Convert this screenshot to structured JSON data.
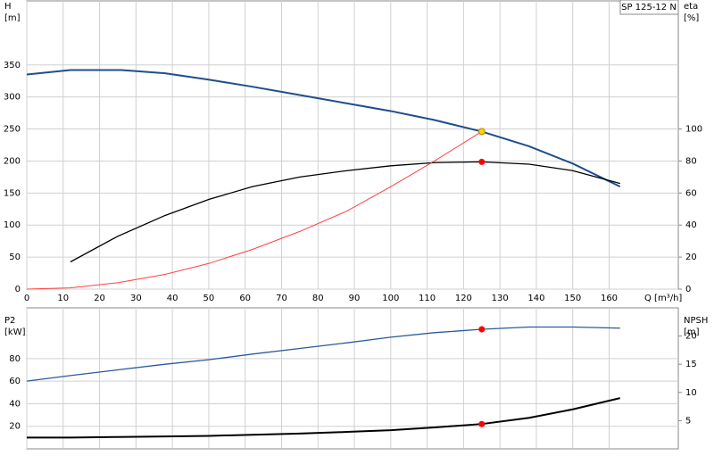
{
  "chart_data": [
    {
      "type": "line",
      "title": "SP 125-12 N",
      "x_label": "Q [m³/h]",
      "y_label": "H",
      "y_unit": "[m]",
      "y2_label": "eta",
      "y2_unit": "[%]",
      "xlim": [
        0,
        179
      ],
      "xticks": [
        0,
        10,
        20,
        30,
        40,
        50,
        60,
        70,
        80,
        90,
        100,
        110,
        120,
        130,
        140,
        150,
        160
      ],
      "ylim": [
        0,
        450
      ],
      "yticks": [
        0,
        50,
        100,
        150,
        200,
        250,
        300,
        350
      ],
      "y2lim": [
        0,
        180
      ],
      "y2ticks": [
        0,
        20,
        40,
        60,
        80,
        100
      ],
      "grid": true,
      "series": [
        {
          "color": "#1f4e8c",
          "axis": "y",
          "width": 2,
          "x": [
            0,
            12,
            26,
            38,
            50,
            62,
            75,
            88,
            100,
            112,
            125,
            138,
            150,
            163
          ],
          "values": [
            335,
            342,
            342,
            337,
            327,
            316,
            303,
            290,
            278,
            264,
            246,
            223,
            196,
            160
          ]
        },
        {
          "color": "#000000",
          "axis": "y2",
          "width": 1.3,
          "x": [
            12,
            25,
            38,
            50,
            62,
            75,
            88,
            100,
            112,
            125,
            138,
            150,
            163
          ],
          "values": [
            17,
            33,
            46,
            56,
            64,
            70,
            74,
            77,
            79,
            79.5,
            78,
            74,
            66
          ]
        },
        {
          "color": "#ff4040",
          "axis": "y",
          "width": 1,
          "x": [
            0,
            12,
            25,
            38,
            50,
            62,
            75,
            88,
            100,
            112,
            125
          ],
          "values": [
            0,
            2,
            10,
            23,
            40,
            62,
            90,
            122,
            160,
            200,
            246
          ]
        }
      ],
      "points": [
        {
          "x": 125,
          "y": 246,
          "axis": "y",
          "color": "#ffd000"
        },
        {
          "x": 125,
          "y": 79.5,
          "axis": "y2",
          "color": "#ff0000"
        }
      ]
    },
    {
      "type": "line",
      "y_label": "P2",
      "y_unit": "[kW]",
      "y2_label": "NPSH",
      "y2_unit": "[m]",
      "xlim": [
        0,
        179
      ],
      "xticks": [
        0,
        10,
        20,
        30,
        40,
        50,
        60,
        70,
        80,
        90,
        100,
        110,
        120,
        130,
        140,
        150,
        160
      ],
      "ylim": [
        0,
        125
      ],
      "yticks": [
        20,
        40,
        60,
        80
      ],
      "y2lim": [
        0,
        25
      ],
      "y2ticks": [
        5,
        10,
        15,
        20
      ],
      "grid": true,
      "series": [
        {
          "color": "#2a5a9a",
          "axis": "y",
          "width": 1.3,
          "x": [
            0,
            12,
            25,
            38,
            50,
            62,
            75,
            88,
            100,
            112,
            125,
            138,
            150,
            163
          ],
          "values": [
            60,
            65,
            70,
            75,
            79,
            84,
            89,
            94,
            99,
            103,
            106,
            108,
            108,
            107
          ]
        },
        {
          "color": "#000000",
          "axis": "y2",
          "width": 2,
          "x": [
            0,
            12,
            25,
            38,
            50,
            62,
            75,
            88,
            100,
            112,
            125,
            138,
            150,
            163
          ],
          "values": [
            2.0,
            2.0,
            2.1,
            2.2,
            2.3,
            2.5,
            2.7,
            3.0,
            3.3,
            3.8,
            4.4,
            5.5,
            7,
            9
          ]
        }
      ],
      "points": [
        {
          "x": 125,
          "y": 106,
          "axis": "y",
          "color": "#ff0000"
        },
        {
          "x": 125,
          "y": 4.4,
          "axis": "y2",
          "color": "#ff0000"
        }
      ]
    }
  ]
}
